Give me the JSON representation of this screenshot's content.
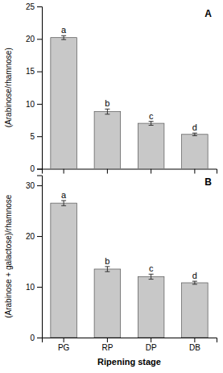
{
  "chart_data": [
    {
      "type": "bar",
      "title": "A",
      "categories": [
        null,
        null,
        null,
        null
      ],
      "values": [
        20.2,
        8.8,
        7.0,
        5.3
      ],
      "errors": [
        0.3,
        0.4,
        0.3,
        0.2
      ],
      "annotations": [
        "a",
        "b",
        "c",
        "d"
      ],
      "ylabel": "(Arabinose/rhamnose)",
      "ylim": [
        0,
        25
      ],
      "yticks": [
        0,
        5,
        10,
        15,
        20,
        25
      ],
      "color": "#c8c8c8",
      "tick_labels": "y"
    },
    {
      "type": "bar",
      "title": "B",
      "categories": [
        "PG",
        "RP",
        "DP",
        "DB"
      ],
      "values": [
        26.5,
        13.5,
        12.0,
        10.8
      ],
      "errors": [
        0.5,
        0.5,
        0.5,
        0.3
      ],
      "annotations": [
        "a",
        "b",
        "c",
        "d"
      ],
      "xlabel": "Ripening stage",
      "ylabel": "(Arabinose + galactose)/rhamnose",
      "ylim": [
        0,
        32
      ],
      "yticks": [
        0,
        10,
        20,
        30
      ],
      "color": "#c8c8c8"
    }
  ]
}
